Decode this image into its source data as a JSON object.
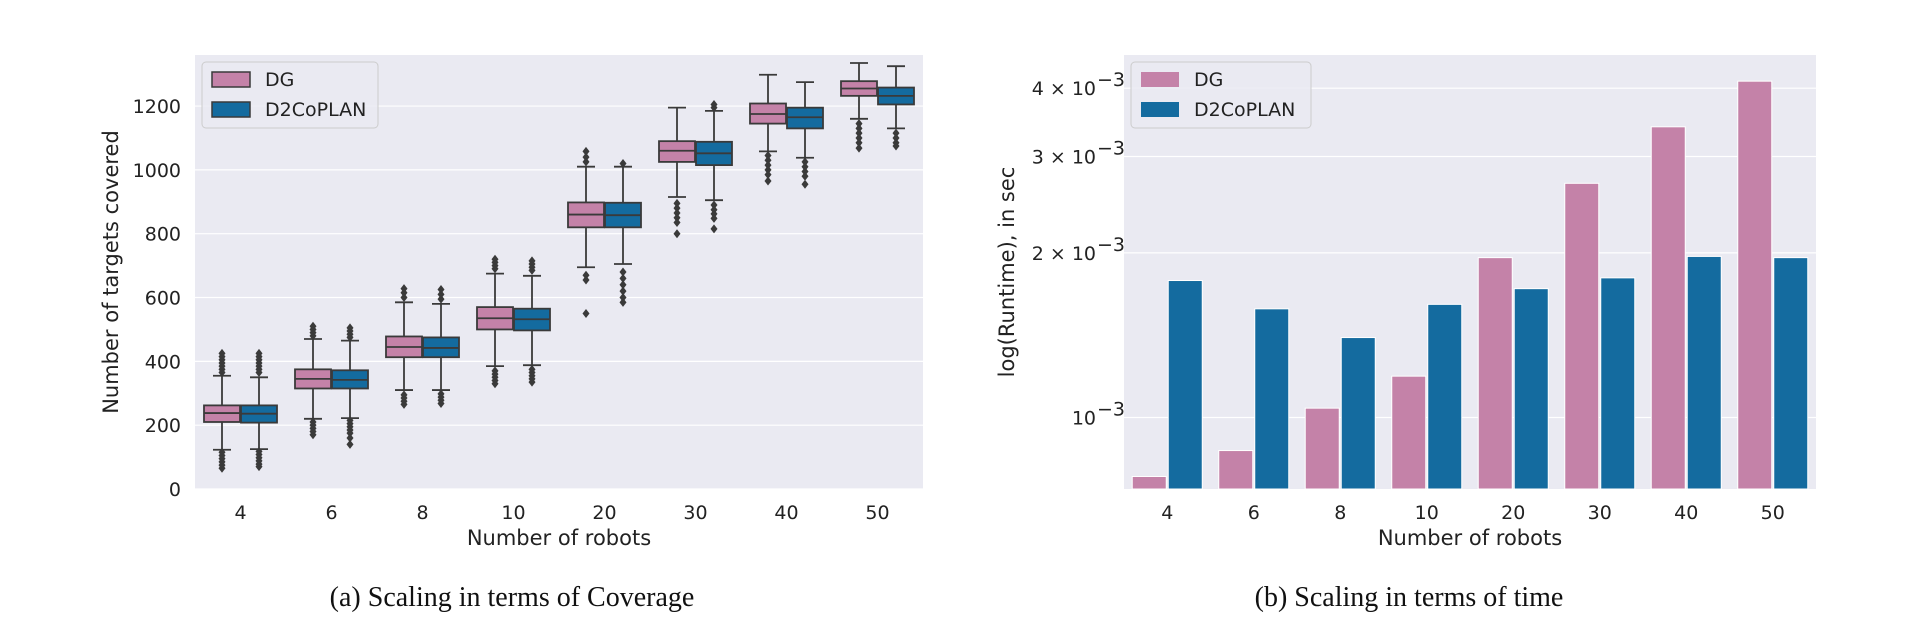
{
  "colors": {
    "dg": "#c482a8",
    "d2coplan": "#146b9f",
    "panel_bg": "#eaeaf2",
    "grid": "#ffffff",
    "edge": "#3a3a3a"
  },
  "chart_data": [
    {
      "type": "box",
      "caption": "(a) Scaling in terms of Coverage",
      "xlabel": "Number of robots",
      "ylabel": "Number of targets covered",
      "ylim": [
        0,
        1360
      ],
      "yticks": [
        0,
        200,
        400,
        600,
        800,
        1000,
        1200
      ],
      "categories": [
        "4",
        "6",
        "8",
        "10",
        "20",
        "30",
        "40",
        "50"
      ],
      "legend": {
        "position": "top-left",
        "entries": [
          "DG",
          "D2CoPLAN"
        ]
      },
      "grid": true,
      "series": [
        {
          "name": "DG",
          "boxes": [
            {
              "q1": 210,
              "median": 238,
              "q3": 262,
              "whislo": 123,
              "whishi": 355,
              "fliers": [
                115,
                105,
                95,
                85,
                75,
                65,
                365,
                375,
                385,
                395,
                405,
                415,
                425
              ]
            },
            {
              "q1": 315,
              "median": 345,
              "q3": 375,
              "whislo": 220,
              "whishi": 470,
              "fliers": [
                210,
                200,
                190,
                180,
                170,
                480,
                490,
                500,
                510
              ]
            },
            {
              "q1": 413,
              "median": 445,
              "q3": 478,
              "whislo": 310,
              "whishi": 585,
              "fliers": [
                295,
                285,
                275,
                265,
                600,
                615,
                628
              ]
            },
            {
              "q1": 500,
              "median": 535,
              "q3": 570,
              "whislo": 385,
              "whishi": 675,
              "fliers": [
                370,
                360,
                350,
                340,
                330,
                690,
                700,
                710,
                720
              ]
            },
            {
              "q1": 820,
              "median": 860,
              "q3": 898,
              "whislo": 695,
              "whishi": 1010,
              "fliers": [
                670,
                655,
                550,
                1025,
                1040,
                1058
              ]
            },
            {
              "q1": 1025,
              "median": 1060,
              "q3": 1090,
              "whislo": 915,
              "whishi": 1195,
              "fliers": [
                895,
                880,
                865,
                850,
                835,
                800
              ]
            },
            {
              "q1": 1145,
              "median": 1175,
              "q3": 1208,
              "whislo": 1058,
              "whishi": 1298,
              "fliers": [
                1045,
                1030,
                1015,
                1000,
                985,
                965
              ]
            },
            {
              "q1": 1232,
              "median": 1255,
              "q3": 1278,
              "whislo": 1160,
              "whishi": 1335,
              "fliers": [
                1145,
                1130,
                1115,
                1100,
                1085,
                1068
              ]
            }
          ]
        },
        {
          "name": "D2CoPLAN",
          "boxes": [
            {
              "q1": 208,
              "median": 236,
              "q3": 262,
              "whislo": 125,
              "whishi": 350,
              "fliers": [
                118,
                108,
                98,
                88,
                78,
                70,
                365,
                375,
                385,
                395,
                405,
                415,
                425
              ]
            },
            {
              "q1": 315,
              "median": 342,
              "q3": 372,
              "whislo": 222,
              "whishi": 465,
              "fliers": [
                215,
                205,
                195,
                185,
                175,
                160,
                140,
                475,
                485,
                495,
                505
              ]
            },
            {
              "q1": 413,
              "median": 442,
              "q3": 475,
              "whislo": 310,
              "whishi": 580,
              "fliers": [
                298,
                288,
                278,
                268,
                595,
                610,
                625
              ]
            },
            {
              "q1": 497,
              "median": 532,
              "q3": 565,
              "whislo": 388,
              "whishi": 668,
              "fliers": [
                375,
                365,
                355,
                345,
                335,
                685,
                695,
                705,
                715
              ]
            },
            {
              "q1": 820,
              "median": 858,
              "q3": 897,
              "whislo": 705,
              "whishi": 1010,
              "fliers": [
                680,
                660,
                640,
                620,
                600,
                585,
                1020
              ]
            },
            {
              "q1": 1015,
              "median": 1052,
              "q3": 1088,
              "whislo": 905,
              "whishi": 1185,
              "fliers": [
                890,
                875,
                862,
                848,
                815,
                1195,
                1205
              ]
            },
            {
              "q1": 1130,
              "median": 1165,
              "q3": 1195,
              "whislo": 1038,
              "whishi": 1275,
              "fliers": [
                1025,
                1010,
                995,
                980,
                955
              ]
            },
            {
              "q1": 1205,
              "median": 1232,
              "q3": 1258,
              "whislo": 1130,
              "whishi": 1325,
              "fliers": [
                1115,
                1100,
                1085,
                1075
              ]
            }
          ]
        }
      ]
    },
    {
      "type": "bar",
      "caption": "(b) Scaling in terms of time",
      "xlabel": "Number of robots",
      "ylabel": "log(Runtime), in sec",
      "yscale": "log",
      "ylim": [
        0.00074,
        0.0046
      ],
      "yticks": [
        {
          "value": 0.001,
          "label_base": "10",
          "label_exp": "−3"
        },
        {
          "value": 0.002,
          "label_base": "2 × 10",
          "label_exp": "−3"
        },
        {
          "value": 0.003,
          "label_base": "3 × 10",
          "label_exp": "−3"
        },
        {
          "value": 0.004,
          "label_base": "4 × 10",
          "label_exp": "−3"
        }
      ],
      "categories": [
        "4",
        "6",
        "8",
        "10",
        "20",
        "30",
        "40",
        "50"
      ],
      "legend": {
        "position": "top-left",
        "entries": [
          "DG",
          "D2CoPLAN"
        ]
      },
      "grid": true,
      "series": [
        {
          "name": "DG",
          "values": [
            0.00078,
            0.00087,
            0.00104,
            0.00119,
            0.00196,
            0.00268,
            0.0034,
            0.00412
          ]
        },
        {
          "name": "D2CoPLAN",
          "values": [
            0.00178,
            0.00158,
            0.0014,
            0.00161,
            0.00172,
            0.0018,
            0.00197,
            0.00196
          ]
        }
      ]
    }
  ]
}
